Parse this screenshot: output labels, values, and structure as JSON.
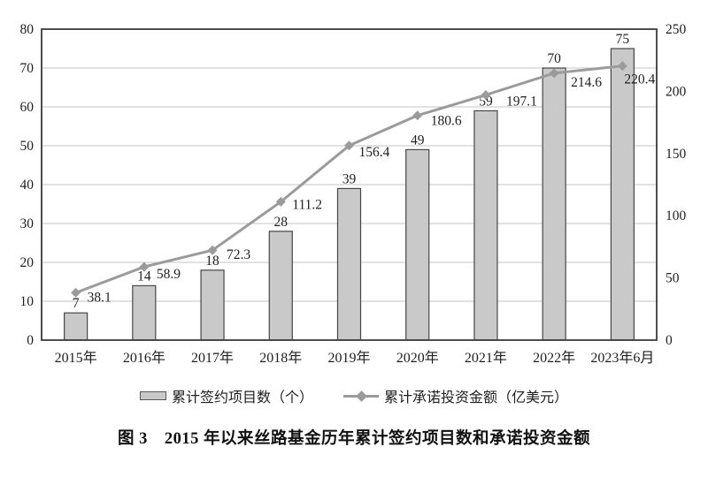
{
  "caption": "图 3　2015 年以来丝路基金历年累计签约项目数和承诺投资金额",
  "chart_data": {
    "type": "bar+line",
    "categories": [
      "2015年",
      "2016年",
      "2017年",
      "2018年",
      "2019年",
      "2020年",
      "2021年",
      "2022年",
      "2023年6月"
    ],
    "series": [
      {
        "name": "累计签约项目数（个）",
        "type": "bar",
        "axis": "left",
        "values": [
          7,
          14,
          18,
          28,
          39,
          49,
          59,
          70,
          75
        ]
      },
      {
        "name": "累计承诺投资金额（亿美元）",
        "type": "line",
        "axis": "right",
        "values": [
          38.1,
          58.9,
          72.3,
          111.2,
          156.4,
          180.6,
          197.1,
          214.6,
          220.4
        ]
      }
    ],
    "left_axis": {
      "min": 0,
      "max": 80,
      "ticks": [
        0,
        10,
        20,
        30,
        40,
        50,
        60,
        70,
        80
      ]
    },
    "right_axis": {
      "min": 0,
      "max": 250,
      "ticks": [
        0,
        50,
        100,
        150,
        200,
        250
      ]
    },
    "grid": true,
    "legend_position": "bottom",
    "colors": {
      "bar_fill": "#c9c9c9",
      "bar_border": "#474747",
      "line": "#9b9b9b",
      "marker": "#9b9b9b",
      "grid": "#c6c6c6",
      "frame": "#3b3b3b",
      "text": "#1f1f1f"
    }
  }
}
